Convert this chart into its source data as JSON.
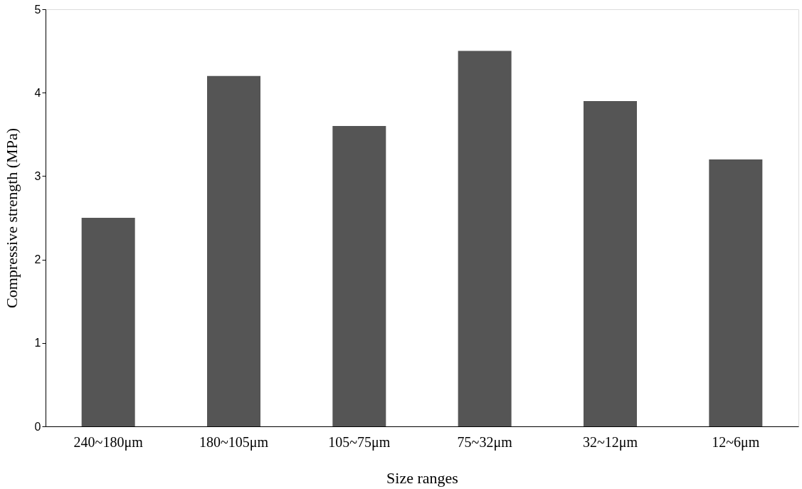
{
  "chart_data": {
    "type": "bar",
    "xlabel": "Size ranges",
    "ylabel": "Compressive strength (MPa)",
    "categories": [
      "240~180μm",
      "180~105μm",
      "105~75μm",
      "75~32μm",
      "32~12μm",
      "12~6μm"
    ],
    "values": [
      2.5,
      4.2,
      3.6,
      4.5,
      3.9,
      3.2
    ],
    "color": "#555555",
    "ylim": [
      0,
      5
    ],
    "yticks": [
      0,
      1,
      2,
      3,
      4,
      5
    ],
    "grid": false
  }
}
